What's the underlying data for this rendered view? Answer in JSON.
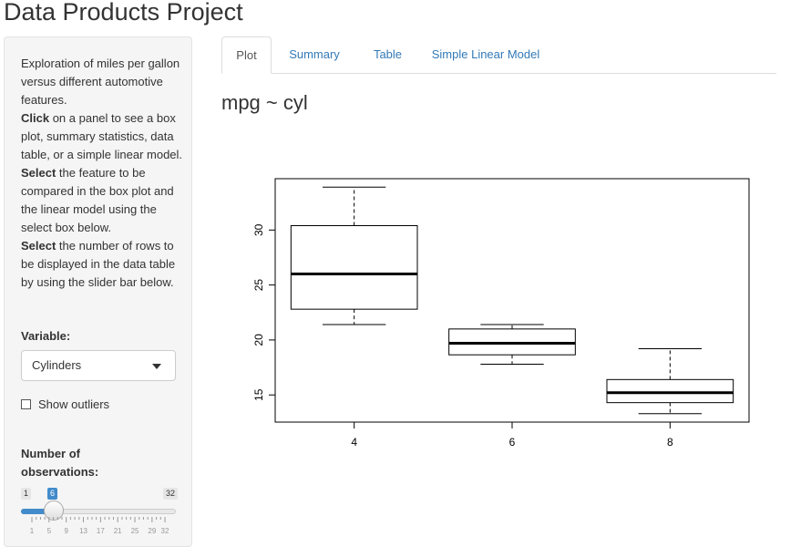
{
  "app": {
    "title": "Data Products Project"
  },
  "sidebar": {
    "desc": [
      {
        "bold": "",
        "text": "Exploration of miles per gallon versus different automotive features."
      },
      {
        "bold": "Click",
        "text": " on a panel to see a box plot, summary statistics, data table, or a simple linear model."
      },
      {
        "bold": "Select",
        "text": " the feature to be compared in the box plot and the linear model using the select box below."
      },
      {
        "bold": "Select",
        "text": " the number of rows to be displayed in the data table by using the slider bar below."
      }
    ],
    "variable_label": "Variable:",
    "variable_value": "Cylinders",
    "outliers_label": "Show outliers",
    "outliers_checked": false,
    "obs_label": "Number of observations:",
    "slider": {
      "min": 1,
      "max": 32,
      "value": 6,
      "min_label": "1",
      "max_label": "32",
      "value_label": "6",
      "tick_labels": [
        "1",
        "5",
        "9",
        "13",
        "17",
        "21",
        "25",
        "29",
        "32"
      ]
    }
  },
  "tabs": [
    {
      "label": "Plot",
      "active": true
    },
    {
      "label": "Summary",
      "active": false
    },
    {
      "label": "Table",
      "active": false
    },
    {
      "label": "Simple Linear Model",
      "active": false
    }
  ],
  "main": {
    "plot_heading": "mpg ~ cyl"
  },
  "chart_data": {
    "type": "box",
    "title": "",
    "xlabel": "",
    "ylabel": "",
    "categories": [
      "4",
      "6",
      "8"
    ],
    "boxes": [
      {
        "category": "4",
        "min": 21.4,
        "q1": 22.8,
        "median": 26.0,
        "q3": 30.4,
        "max": 33.9
      },
      {
        "category": "6",
        "min": 17.8,
        "q1": 18.65,
        "median": 19.7,
        "q3": 21.0,
        "max": 21.4
      },
      {
        "category": "8",
        "min": 13.3,
        "q1": 14.3,
        "median": 15.2,
        "q3": 16.4,
        "max": 19.2
      }
    ],
    "yticks": [
      "15",
      "20",
      "25",
      "30"
    ],
    "ylim": [
      12.53,
      34.67
    ],
    "grid": false
  }
}
